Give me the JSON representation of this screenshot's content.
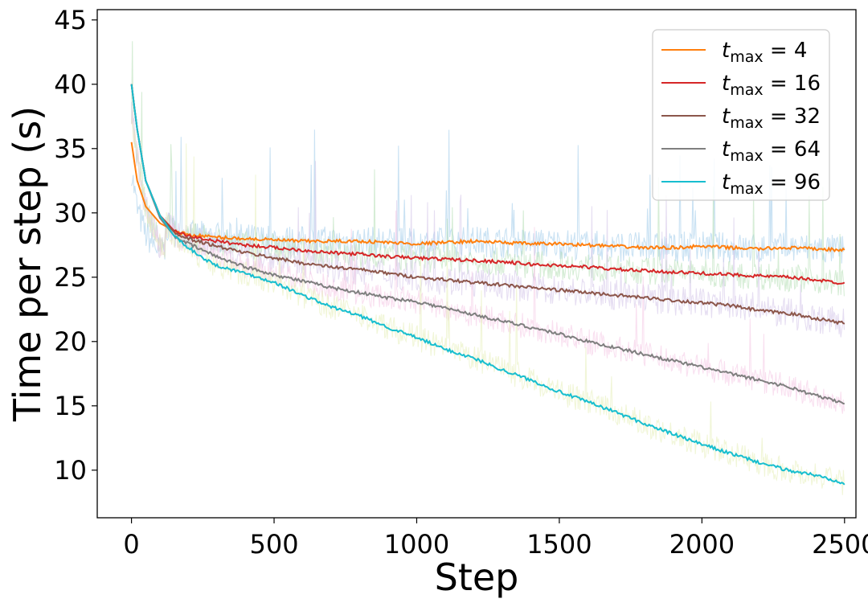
{
  "chart_data": {
    "type": "line",
    "xlabel": "Step",
    "ylabel": "Time per step (s)",
    "xlim": [
      -120,
      2540
    ],
    "ylim": [
      6.3,
      45.8
    ],
    "x_ticks": [
      0,
      500,
      1000,
      1500,
      2000,
      2500
    ],
    "y_ticks": [
      10,
      15,
      20,
      25,
      30,
      35,
      40,
      45
    ],
    "x_tick_labels": [
      "0",
      "500",
      "1000",
      "1500",
      "2000",
      "2500"
    ],
    "y_tick_labels": [
      "10",
      "15",
      "20",
      "25",
      "30",
      "35",
      "40",
      "45"
    ],
    "grid": false,
    "legend_position": "top-right",
    "series": [
      {
        "name": "t_max = 4",
        "legend_main": "t",
        "legend_sub": "max",
        "legend_rest": " = 4",
        "color": "#ff7f0e",
        "raw_color": "#9ecae9",
        "noise": 1.2,
        "x": [
          0,
          20,
          50,
          100,
          150,
          200,
          300,
          400,
          500,
          600,
          700,
          800,
          900,
          1000,
          1100,
          1200,
          1300,
          1400,
          1500,
          1600,
          1700,
          1800,
          1900,
          2000,
          2100,
          2200,
          2300,
          2400,
          2500
        ],
        "y": [
          35.5,
          32.5,
          30.5,
          29.2,
          28.6,
          28.3,
          28.1,
          28.0,
          27.9,
          27.8,
          27.8,
          27.8,
          27.7,
          27.6,
          27.7,
          27.8,
          27.7,
          27.6,
          27.6,
          27.5,
          27.4,
          27.3,
          27.3,
          27.4,
          27.3,
          27.2,
          27.3,
          27.2,
          27.1
        ]
      },
      {
        "name": "t_max = 16",
        "legend_main": "t",
        "legend_sub": "max",
        "legend_rest": " = 16",
        "color": "#d62728",
        "raw_color": "#b5dfb5",
        "noise": 1.1,
        "x": [
          0,
          20,
          50,
          100,
          150,
          200,
          300,
          400,
          500,
          600,
          700,
          800,
          900,
          1000,
          1100,
          1200,
          1300,
          1400,
          1500,
          1600,
          1700,
          1800,
          1900,
          2000,
          2100,
          2200,
          2300,
          2400,
          2500
        ],
        "y": [
          40.0,
          36.5,
          32.5,
          29.8,
          28.6,
          28.2,
          27.8,
          27.5,
          27.3,
          27.1,
          26.9,
          26.8,
          26.6,
          26.5,
          26.4,
          26.3,
          26.2,
          26.0,
          25.9,
          25.8,
          25.6,
          25.5,
          25.4,
          25.3,
          25.2,
          25.1,
          25.0,
          24.8,
          24.5
        ]
      },
      {
        "name": "t_max = 32",
        "legend_main": "t",
        "legend_sub": "max",
        "legend_rest": " = 32",
        "color": "#8c564b",
        "raw_color": "#d2c3e8",
        "noise": 1.2,
        "x": [
          0,
          20,
          50,
          100,
          150,
          200,
          300,
          400,
          500,
          600,
          700,
          800,
          900,
          1000,
          1100,
          1200,
          1300,
          1400,
          1500,
          1600,
          1700,
          1800,
          1900,
          2000,
          2100,
          2200,
          2300,
          2400,
          2500
        ],
        "y": [
          40.0,
          36.5,
          32.5,
          29.8,
          28.5,
          28.0,
          27.4,
          26.9,
          26.5,
          26.1,
          25.8,
          25.6,
          25.3,
          25.0,
          24.8,
          24.6,
          24.4,
          24.2,
          24.0,
          23.8,
          23.6,
          23.4,
          23.2,
          23.0,
          22.8,
          22.4,
          22.2,
          21.8,
          21.4
        ]
      },
      {
        "name": "t_max = 64",
        "legend_main": "t",
        "legend_sub": "max",
        "legend_rest": " = 64",
        "color": "#7f7f7f",
        "raw_color": "#f4c7e4",
        "noise": 1.0,
        "x": [
          0,
          20,
          50,
          100,
          150,
          200,
          300,
          400,
          500,
          600,
          700,
          800,
          900,
          1000,
          1100,
          1200,
          1300,
          1400,
          1500,
          1600,
          1700,
          1800,
          1900,
          2000,
          2100,
          2200,
          2300,
          2400,
          2500
        ],
        "y": [
          40.0,
          36.5,
          32.5,
          29.6,
          28.2,
          27.6,
          26.6,
          25.8,
          25.2,
          24.7,
          24.2,
          23.8,
          23.4,
          23.1,
          22.6,
          22.1,
          21.6,
          21.1,
          20.6,
          20.0,
          19.5,
          19.0,
          18.5,
          18.0,
          17.5,
          17.0,
          16.5,
          15.8,
          15.2
        ]
      },
      {
        "name": "t_max = 96",
        "legend_main": "t",
        "legend_sub": "max",
        "legend_rest": " = 96",
        "color": "#17becf",
        "raw_color": "#e6efb8",
        "noise": 1.0,
        "x": [
          0,
          20,
          50,
          100,
          150,
          200,
          250,
          300,
          400,
          500,
          600,
          700,
          800,
          900,
          1000,
          1100,
          1200,
          1300,
          1400,
          1500,
          1600,
          1700,
          1800,
          1900,
          2000,
          2100,
          2200,
          2300,
          2400,
          2500
        ],
        "y": [
          40.0,
          36.5,
          32.5,
          29.8,
          28.2,
          27.3,
          26.5,
          25.9,
          25.3,
          24.6,
          23.6,
          22.7,
          22.0,
          21.1,
          20.3,
          19.4,
          18.7,
          17.8,
          17.0,
          16.1,
          15.3,
          14.5,
          13.6,
          12.8,
          12.0,
          11.3,
          10.6,
          10.0,
          9.6,
          9.0
        ]
      }
    ]
  }
}
